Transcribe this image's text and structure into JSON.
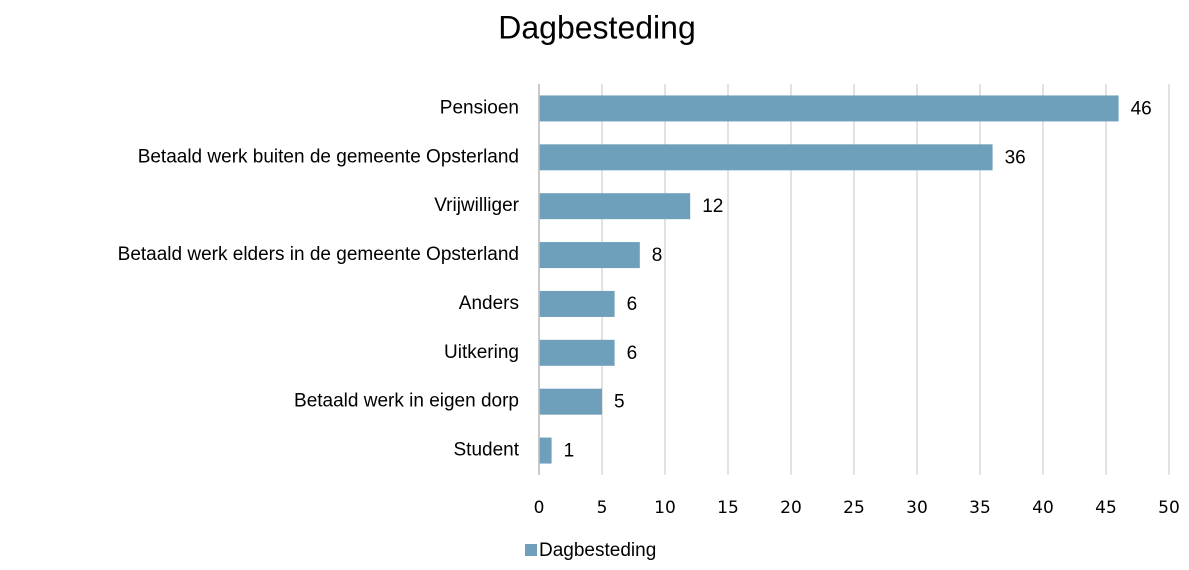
{
  "chart_data": {
    "type": "bar",
    "orientation": "horizontal",
    "title": "Dagbesteding",
    "categories": [
      "Pensioen",
      "Betaald werk buiten de gemeente Opsterland",
      "Vrijwilliger",
      "Betaald werk elders in de gemeente Opsterland",
      "Anders",
      "Uitkering",
      "Betaald werk in eigen dorp",
      "Student"
    ],
    "series": [
      {
        "name": "Dagbesteding",
        "color": "#6fa0bb",
        "values": [
          46,
          36,
          12,
          8,
          6,
          6,
          5,
          1
        ]
      }
    ],
    "xlim": [
      0,
      50
    ],
    "xticks": [
      0,
      5,
      10,
      15,
      20,
      25,
      30,
      35,
      40,
      45,
      50
    ],
    "grid": true,
    "legend": "bottom"
  }
}
